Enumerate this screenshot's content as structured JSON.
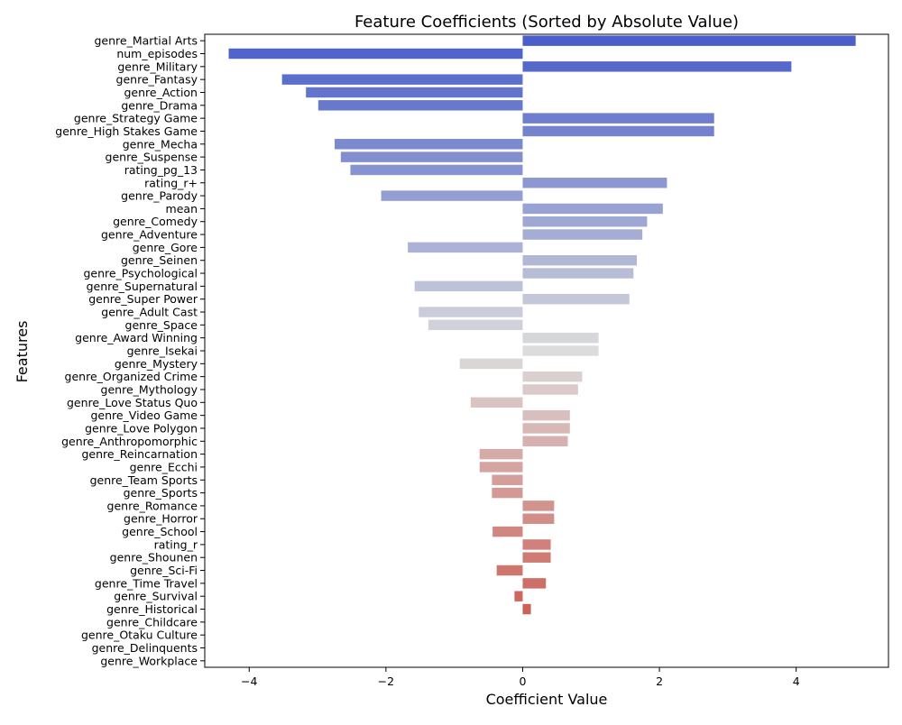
{
  "chart_data": {
    "type": "bar",
    "orientation": "horizontal",
    "title": "Feature Coefficients (Sorted by Absolute Value)",
    "xlabel": "Coefficient Value",
    "ylabel": "Features",
    "xlim": [
      -4.65,
      5.35
    ],
    "xticks": [
      -4,
      -2,
      0,
      2,
      4
    ],
    "grid": false,
    "colormap": "coolwarm",
    "colors": {
      "start": "#4a5fc9",
      "mid": "#dcdcdc",
      "end": "#c84a40"
    },
    "categories": [
      "genre_Martial Arts",
      "num_episodes",
      "genre_Military",
      "genre_Fantasy",
      "genre_Action",
      "genre_Drama",
      "genre_Strategy Game",
      "genre_High Stakes Game",
      "genre_Mecha",
      "genre_Suspense",
      "rating_pg_13",
      "rating_r+",
      "genre_Parody",
      "mean",
      "genre_Comedy",
      "genre_Adventure",
      "genre_Gore",
      "genre_Seinen",
      "genre_Psychological",
      "genre_Supernatural",
      "genre_Super Power",
      "genre_Adult Cast",
      "genre_Space",
      "genre_Award Winning",
      "genre_Isekai",
      "genre_Mystery",
      "genre_Organized Crime",
      "genre_Mythology",
      "genre_Love Status Quo",
      "genre_Video Game",
      "genre_Love Polygon",
      "genre_Anthropomorphic",
      "genre_Reincarnation",
      "genre_Ecchi",
      "genre_Team Sports",
      "genre_Sports",
      "genre_Romance",
      "genre_Horror",
      "genre_School",
      "rating_r",
      "genre_Shounen",
      "genre_Sci-Fi",
      "genre_Time Travel",
      "genre_Survival",
      "genre_Historical",
      "genre_Childcare",
      "genre_Otaku Culture",
      "genre_Delinquents",
      "genre_Workplace"
    ],
    "values": [
      4.87,
      -4.3,
      3.93,
      -3.52,
      -3.17,
      -2.99,
      2.8,
      2.8,
      -2.75,
      -2.66,
      -2.52,
      2.11,
      -2.07,
      2.05,
      1.82,
      1.75,
      -1.68,
      1.67,
      1.62,
      -1.58,
      1.56,
      -1.52,
      -1.38,
      1.11,
      1.11,
      -0.92,
      0.87,
      0.81,
      -0.76,
      0.69,
      0.69,
      0.66,
      -0.63,
      -0.63,
      -0.45,
      -0.45,
      0.46,
      0.46,
      -0.44,
      0.41,
      0.41,
      -0.38,
      0.34,
      -0.12,
      0.12,
      0.0,
      0.0,
      0.0,
      0.0
    ]
  }
}
